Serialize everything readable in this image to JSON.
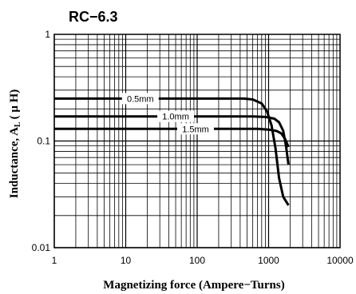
{
  "chart_data": {
    "type": "line",
    "title": "RC−6.3",
    "xlabel": "Magnetizing force (Ampere−Turns)",
    "ylabel": "Inductance, AL ( μ H)",
    "ylabel_parts": {
      "prefix": "Inductance, A",
      "sub": "L",
      "suffix": "( μ H)"
    },
    "x_scale": "log",
    "y_scale": "log",
    "xlim": [
      1,
      10000
    ],
    "ylim": [
      0.01,
      1
    ],
    "x_ticks": [
      {
        "value": 1,
        "label": "1"
      },
      {
        "value": 10,
        "label": "10"
      },
      {
        "value": 100,
        "label": "100"
      },
      {
        "value": 1000,
        "label": "1000"
      },
      {
        "value": 10000,
        "label": "10000"
      }
    ],
    "y_ticks": [
      {
        "value": 0.01,
        "label": "0.01"
      },
      {
        "value": 0.1,
        "label": "0.1"
      },
      {
        "value": 1,
        "label": "1"
      }
    ],
    "grid": true,
    "legend": "inline labels on curves",
    "series": [
      {
        "name": "0.5mm",
        "x": [
          1,
          100,
          450,
          600,
          800,
          950,
          1100,
          1250,
          1400,
          1600,
          1900
        ],
        "y": [
          0.25,
          0.25,
          0.25,
          0.245,
          0.225,
          0.19,
          0.14,
          0.085,
          0.045,
          0.03,
          0.025
        ]
      },
      {
        "name": "1.0mm",
        "x": [
          1,
          100,
          600,
          900,
          1200,
          1400,
          1600,
          1750,
          1900
        ],
        "y": [
          0.17,
          0.17,
          0.17,
          0.168,
          0.162,
          0.15,
          0.125,
          0.09,
          0.06
        ]
      },
      {
        "name": "1.5mm",
        "x": [
          1,
          100,
          700,
          1000,
          1300,
          1500,
          1700,
          1900
        ],
        "y": [
          0.13,
          0.13,
          0.13,
          0.128,
          0.124,
          0.118,
          0.105,
          0.088
        ]
      }
    ]
  }
}
